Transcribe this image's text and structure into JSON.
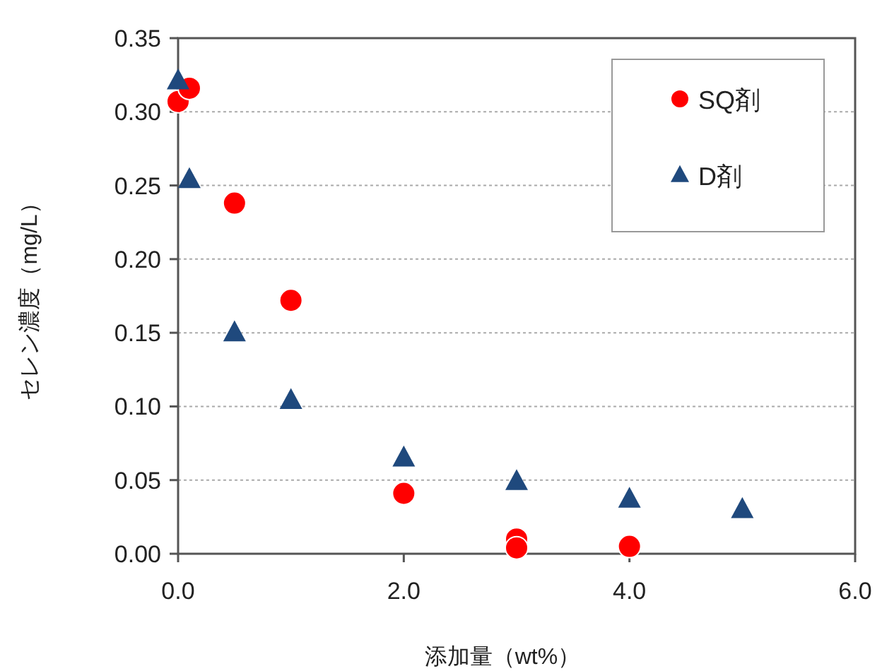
{
  "chart_data": {
    "type": "scatter",
    "xlabel": "添加量（wt%）",
    "ylabel": "セレン濃度（mg/L）",
    "xlim": [
      0,
      6
    ],
    "ylim": [
      0,
      0.35
    ],
    "xticks": [
      {
        "value": 0,
        "label": "0.0"
      },
      {
        "value": 2,
        "label": "2.0"
      },
      {
        "value": 4,
        "label": "4.0"
      },
      {
        "value": 6,
        "label": "6.0"
      }
    ],
    "yticks": [
      {
        "value": 0,
        "label": "0.00"
      },
      {
        "value": 0.05,
        "label": "0.05"
      },
      {
        "value": 0.1,
        "label": "0.10"
      },
      {
        "value": 0.15,
        "label": "0.15"
      },
      {
        "value": 0.2,
        "label": "0.20"
      },
      {
        "value": 0.25,
        "label": "0.25"
      },
      {
        "value": 0.3,
        "label": "0.30"
      },
      {
        "value": 0.35,
        "label": "0.35"
      }
    ],
    "grid": "y",
    "legend": "top right",
    "series": [
      {
        "name": "SQ剤",
        "color": "#ff0000",
        "marker": "circle",
        "x": [
          0,
          0.1,
          0.5,
          1,
          2,
          3,
          3,
          4
        ],
        "values": [
          0.307,
          0.316,
          0.238,
          0.172,
          0.041,
          0.01,
          0.004,
          0.005
        ]
      },
      {
        "name": "D剤",
        "color": "#1f497d",
        "marker": "triangle",
        "x": [
          0,
          0.1,
          0.5,
          1,
          2,
          3,
          4,
          5
        ],
        "values": [
          0.321,
          0.254,
          0.15,
          0.104,
          0.065,
          0.049,
          0.037,
          0.03
        ]
      }
    ]
  }
}
